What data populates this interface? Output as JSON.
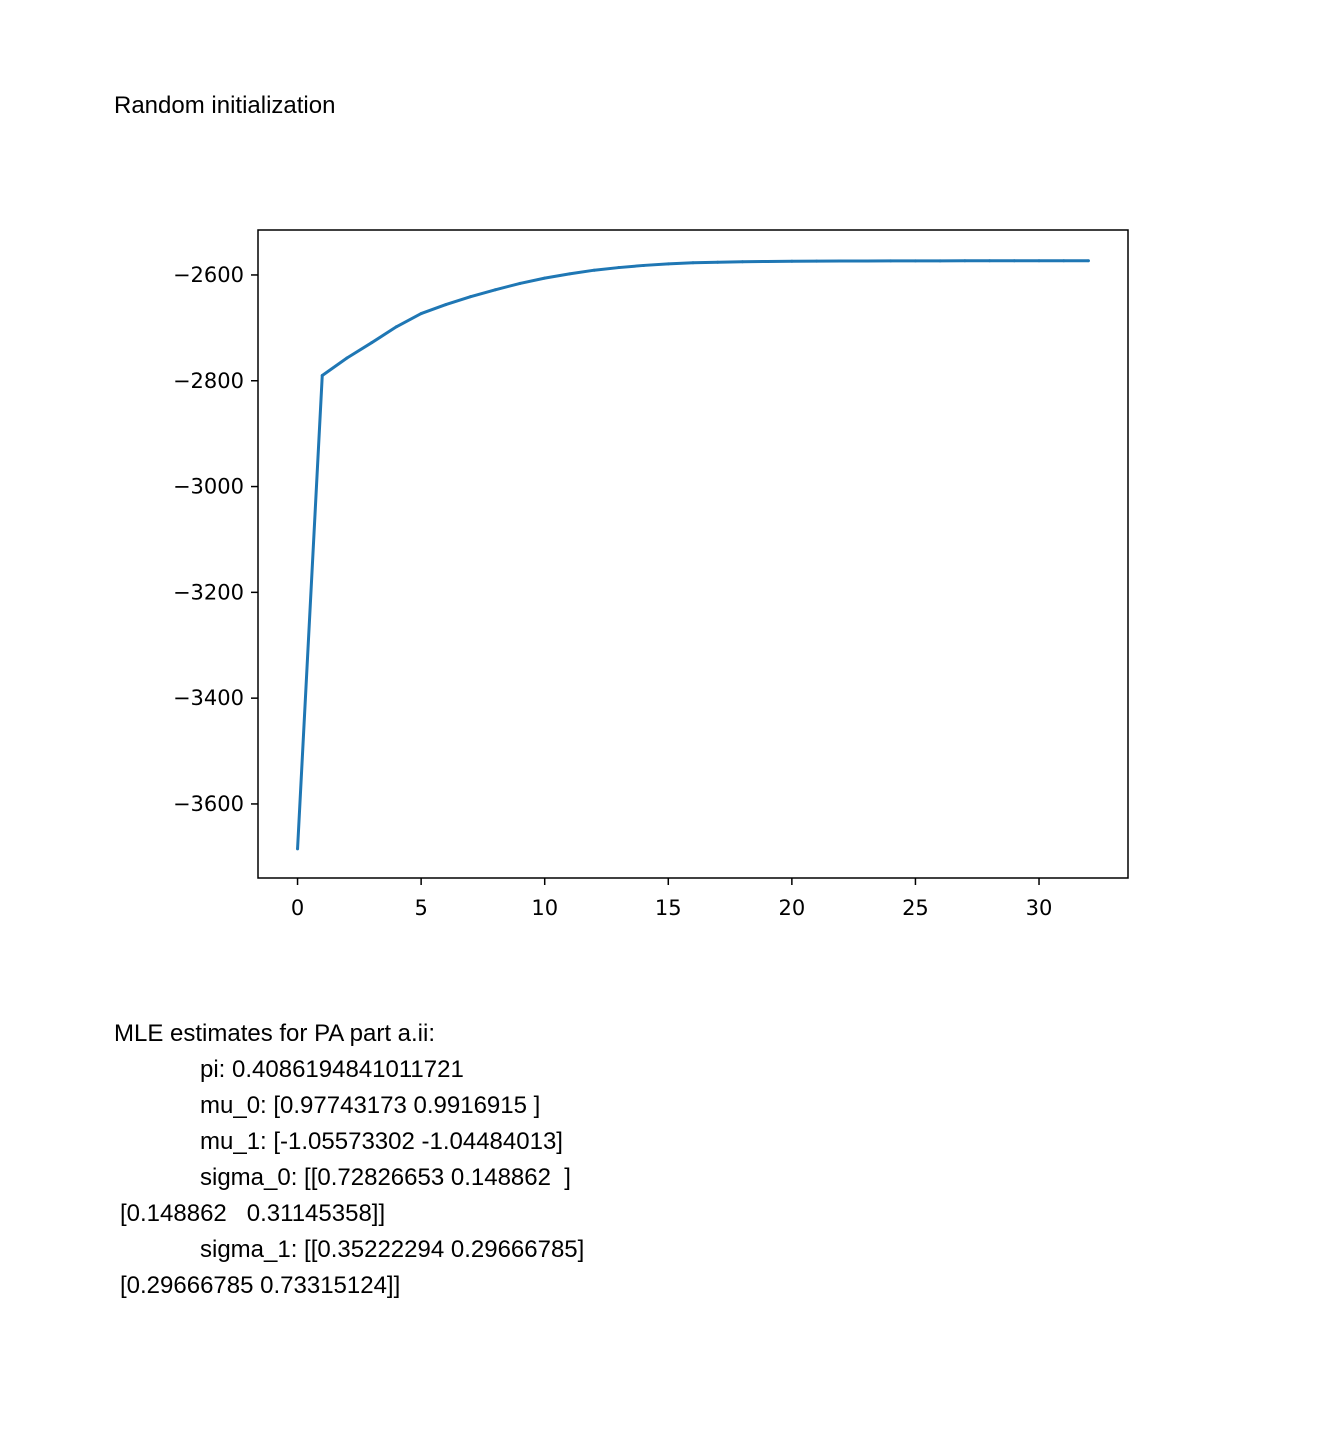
{
  "heading": "Random initialization",
  "chart_data": {
    "type": "line",
    "title": "",
    "xlabel": "",
    "ylabel": "",
    "xlim": [
      -1.6,
      33.6
    ],
    "ylim": [
      -3740,
      -2515
    ],
    "xticks": [
      0,
      5,
      10,
      15,
      20,
      25,
      30
    ],
    "yticks": [
      -3600,
      -3400,
      -3200,
      -3000,
      -2800,
      -2600
    ],
    "grid": false,
    "legend": "none",
    "series": [
      {
        "color": "#1f77b4",
        "x": [
          0,
          1,
          2,
          3,
          4,
          5,
          6,
          7,
          8,
          9,
          10,
          11,
          12,
          13,
          14,
          15,
          16,
          17,
          18,
          19,
          20,
          21,
          22,
          23,
          24,
          25,
          26,
          27,
          28,
          29,
          30,
          31,
          32
        ],
        "y": [
          -3685,
          -2790,
          -2757,
          -2728,
          -2698,
          -2673,
          -2656,
          -2641,
          -2628,
          -2616,
          -2606,
          -2598,
          -2591,
          -2586,
          -2582,
          -2579,
          -2577,
          -2576,
          -2575,
          -2574.5,
          -2574,
          -2573.8,
          -2573.6,
          -2573.5,
          -2573.4,
          -2573.3,
          -2573.3,
          -2573.2,
          -2573.2,
          -2573.2,
          -2573.2,
          -2573.2,
          -2573.2
        ]
      }
    ]
  },
  "results": {
    "title": "MLE estimates for PA part a.ii:",
    "pi": "pi: 0.4086194841011721",
    "mu_0": "mu_0: [0.97743173 0.9916915 ]",
    "mu_1": "mu_1: [-1.05573302 -1.04484013]",
    "sigma_0_row1": "sigma_0: [[0.72826653 0.148862  ]",
    "sigma_0_row2": "[0.148862   0.31145358]]",
    "sigma_1_row1": "sigma_1: [[0.35222294 0.29666785]",
    "sigma_1_row2": "[0.29666785 0.73315124]]"
  }
}
